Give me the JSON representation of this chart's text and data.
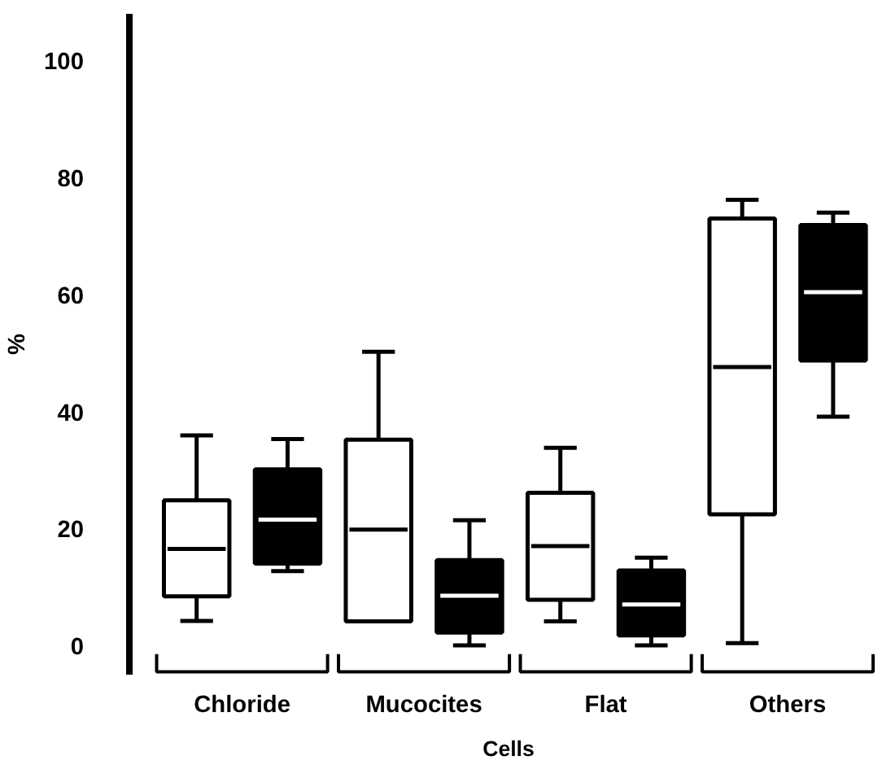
{
  "chart_data": {
    "type": "box",
    "xlabel": "Cells",
    "ylabel": "%",
    "categories": [
      "Chloride",
      "Mucocites",
      "Flat",
      "Others"
    ],
    "ylim": [
      -5,
      108
    ],
    "yticks": [
      0,
      20,
      40,
      60,
      80,
      100
    ],
    "grid": false,
    "series": [
      {
        "color": "#ffffff",
        "boxes": [
          {
            "low": 4.2,
            "q1": 8.4,
            "median": 16.5,
            "q3": 24.8,
            "high": 35.9
          },
          {
            "low": 4.1,
            "q1": 4.1,
            "median": 19.8,
            "q3": 35.2,
            "high": 50.2
          },
          {
            "low": 4.1,
            "q1": 7.8,
            "median": 17.0,
            "q3": 26.1,
            "high": 33.8
          },
          {
            "low": 0.4,
            "q1": 22.4,
            "median": 47.6,
            "q3": 73.0,
            "high": 76.2
          }
        ]
      },
      {
        "color": "#000000",
        "boxes": [
          {
            "low": 12.7,
            "q1": 14.0,
            "median": 21.5,
            "q3": 30.1,
            "high": 35.3
          },
          {
            "low": 0,
            "q1": 2.2,
            "median": 8.5,
            "q3": 14.6,
            "high": 21.4
          },
          {
            "low": 0,
            "q1": 1.7,
            "median": 7.0,
            "q3": 12.8,
            "high": 15.0
          },
          {
            "low": 39.1,
            "q1": 48.7,
            "median": 60.4,
            "q3": 71.9,
            "high": 74.0
          }
        ]
      }
    ]
  }
}
